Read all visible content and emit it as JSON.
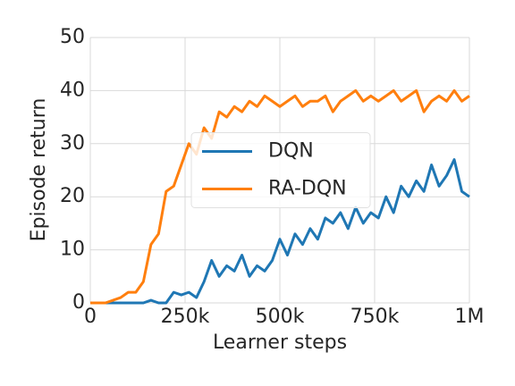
{
  "chart_data": {
    "type": "line",
    "xlabel": "Learner steps",
    "ylabel": "Episode return",
    "x": [
      0,
      20000,
      40000,
      60000,
      80000,
      100000,
      120000,
      140000,
      160000,
      180000,
      200000,
      220000,
      240000,
      260000,
      280000,
      300000,
      320000,
      340000,
      360000,
      380000,
      400000,
      420000,
      440000,
      460000,
      480000,
      500000,
      520000,
      540000,
      560000,
      580000,
      600000,
      620000,
      640000,
      660000,
      680000,
      700000,
      720000,
      740000,
      760000,
      780000,
      800000,
      820000,
      840000,
      860000,
      880000,
      900000,
      920000,
      940000,
      960000,
      980000,
      1000000
    ],
    "series": [
      {
        "name": "DQN",
        "color": "#1f77b4",
        "values": [
          0,
          0,
          0,
          0,
          0,
          0,
          0,
          0,
          0.5,
          0,
          0,
          2,
          1.5,
          2,
          1,
          4,
          8,
          5,
          7,
          6,
          9,
          5,
          7,
          6,
          8,
          12,
          9,
          13,
          11,
          14,
          12,
          16,
          15,
          17,
          14,
          18,
          15,
          17,
          16,
          20,
          17,
          22,
          20,
          23,
          21,
          26,
          22,
          24,
          27,
          21,
          20
        ]
      },
      {
        "name": "RA-DQN",
        "color": "#ff7f0e",
        "values": [
          0,
          0,
          0,
          0.5,
          1,
          2,
          2,
          4,
          11,
          13,
          21,
          22,
          26,
          30,
          28,
          33,
          31,
          36,
          35,
          37,
          36,
          38,
          37,
          39,
          38,
          37,
          38,
          39,
          37,
          38,
          38,
          39,
          36,
          38,
          39,
          40,
          38,
          39,
          38,
          39,
          40,
          38,
          39,
          40,
          36,
          38,
          39,
          38,
          40,
          38,
          39
        ]
      }
    ],
    "xlim": [
      0,
      1000000
    ],
    "xticks": [
      0,
      {
        "value": 250000,
        "label": "250k"
      },
      {
        "value": 500000,
        "label": "500k"
      },
      {
        "value": 750000,
        "label": "750k"
      },
      {
        "value": 1000000,
        "label": "1M"
      }
    ],
    "ylim": [
      0,
      50
    ],
    "yticks": [
      0,
      10,
      20,
      30,
      40,
      50
    ],
    "grid": true,
    "legend": "center"
  }
}
